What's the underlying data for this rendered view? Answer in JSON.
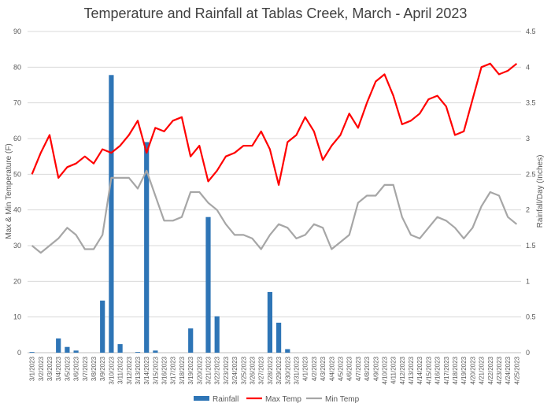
{
  "chart_data": {
    "type": "bar+line",
    "title": "Temperature and Rainfall at Tablas Creek, March - April 2023",
    "ylabel_left": "Max & Min Temperature (F)",
    "ylabel_right": "Rainfall/Day (Inches)",
    "ylim_left": [
      0,
      90
    ],
    "ylim_right": [
      0,
      4.5
    ],
    "yticks_left": [
      "0",
      "10",
      "20",
      "30",
      "40",
      "50",
      "60",
      "70",
      "80",
      "90"
    ],
    "yticks_right": [
      "0",
      "0.5",
      "1",
      "1.5",
      "2",
      "2.5",
      "3",
      "3.5",
      "4",
      "4.5"
    ],
    "grid": true,
    "legend_position": "bottom",
    "categories": [
      "3/1/2023",
      "3/2/2023",
      "3/3/2023",
      "3/4/2023",
      "3/5/2023",
      "3/6/2023",
      "3/7/2023",
      "3/8/2023",
      "3/9/2023",
      "3/10/2023",
      "3/11/2023",
      "3/12/2023",
      "3/13/2023",
      "3/14/2023",
      "3/15/2023",
      "3/16/2023",
      "3/17/2023",
      "3/18/2023",
      "3/19/2023",
      "3/20/2023",
      "3/21/2023",
      "3/22/2023",
      "3/23/2023",
      "3/24/2023",
      "3/25/2023",
      "3/26/2023",
      "3/27/2023",
      "3/28/2023",
      "3/29/2023",
      "3/30/2023",
      "3/31/2023",
      "4/1/2023",
      "4/2/2023",
      "4/3/2023",
      "4/4/2023",
      "4/5/2023",
      "4/6/2023",
      "4/7/2023",
      "4/8/2023",
      "4/9/2023",
      "4/10/2023",
      "4/11/2023",
      "4/12/2023",
      "4/13/2023",
      "4/14/2023",
      "4/15/2023",
      "4/16/2023",
      "4/17/2023",
      "4/18/2023",
      "4/19/2023",
      "4/20/2023",
      "4/21/2023",
      "4/22/2023",
      "4/23/2023",
      "4/24/2023",
      "4/25/2023"
    ],
    "series": [
      {
        "name": "Rainfall",
        "kind": "bar",
        "axis": "right",
        "color": "#2e75b6",
        "values": [
          0.01,
          0,
          0,
          0.2,
          0.08,
          0.03,
          0,
          0,
          0.73,
          3.89,
          0.12,
          0,
          0.01,
          2.95,
          0.03,
          0,
          0,
          0,
          0.34,
          0,
          1.9,
          0.51,
          0,
          0,
          0,
          0,
          0,
          0.85,
          0.42,
          0.05,
          0,
          0,
          0,
          0,
          0,
          0,
          0,
          0,
          0,
          0,
          0,
          0,
          0,
          0,
          0,
          0,
          0,
          0,
          0,
          0,
          0,
          0,
          0,
          0,
          0,
          0
        ]
      },
      {
        "name": "Max Temp",
        "kind": "line",
        "axis": "left",
        "color": "#ff0000",
        "values": [
          50,
          56,
          61,
          49,
          52,
          53,
          55,
          53,
          57,
          56,
          58,
          61,
          65,
          56,
          63,
          62,
          65,
          66,
          55,
          58,
          48,
          51,
          55,
          56,
          58,
          58,
          62,
          57,
          47,
          59,
          61,
          66,
          62,
          54,
          58,
          61,
          67,
          63,
          70,
          76,
          78,
          72,
          64,
          65,
          67,
          71,
          72,
          69,
          61,
          62,
          71,
          80,
          81,
          78,
          79,
          81
        ]
      },
      {
        "name": "Min Temp",
        "kind": "line",
        "axis": "left",
        "color": "#a6a6a6",
        "values": [
          30,
          28,
          30,
          32,
          35,
          33,
          29,
          29,
          33,
          49,
          49,
          49,
          46,
          51,
          44,
          37,
          37,
          38,
          45,
          45,
          42,
          40,
          36,
          33,
          33,
          32,
          29,
          33,
          36,
          35,
          32,
          33,
          36,
          35,
          29,
          31,
          33,
          42,
          44,
          44,
          47,
          47,
          38,
          33,
          32,
          35,
          38,
          37,
          35,
          32,
          35,
          41,
          45,
          44,
          38,
          36
        ]
      }
    ]
  }
}
